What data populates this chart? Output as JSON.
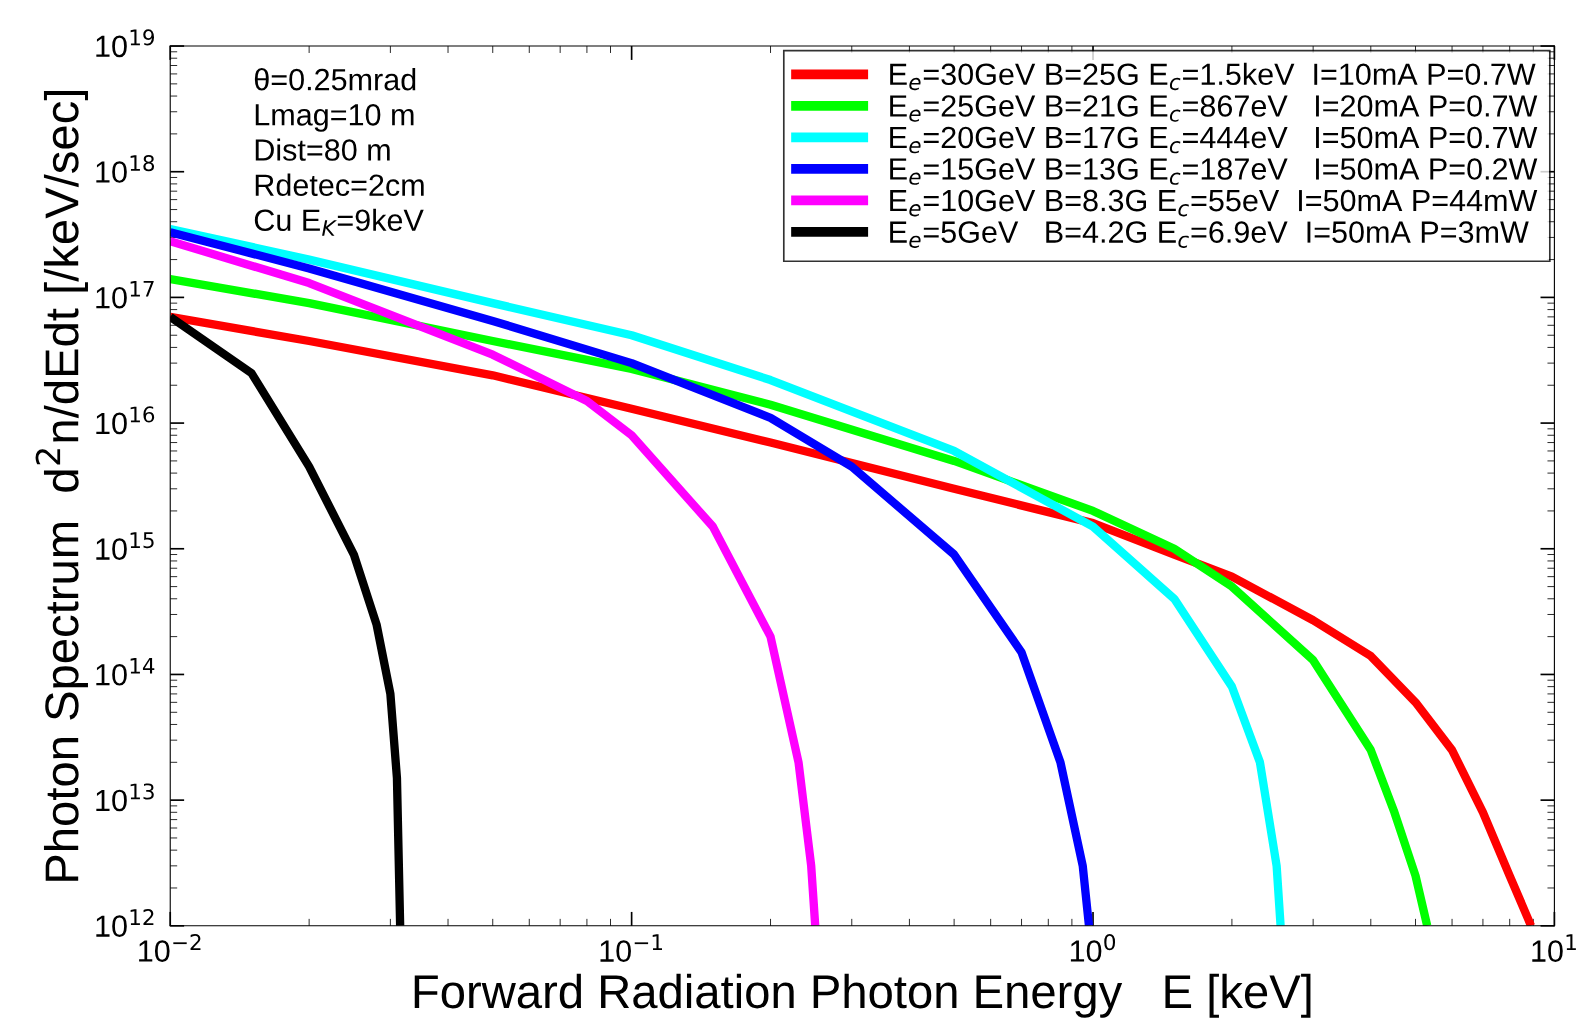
{
  "chart_data": {
    "type": "line",
    "xlabel": "Forward Radiation Photon Energy   E [keV]",
    "ylabel": "Photon Spectrum  d$^{2}$n/dEdt [/keV/sec]",
    "log": "xy",
    "grid": false,
    "legend": "top right",
    "marker": "none",
    "line_style": "solid",
    "xlim": [
      0.01,
      10
    ],
    "ylim": [
      1000000000000.0,
      1e+19
    ],
    "xticks": [
      {
        "value": 0.01,
        "label": "10$^{−2}$"
      },
      {
        "value": 0.1,
        "label": "10$^{−1}$"
      },
      {
        "value": 1,
        "label": "10$^{0}$"
      },
      {
        "value": 10,
        "label": "10$^{1}$"
      }
    ],
    "yticks": [
      {
        "value": 1000000000000.0,
        "label": "10$^{12}$"
      },
      {
        "value": 10000000000000.0,
        "label": "10$^{13}$"
      },
      {
        "value": 100000000000000.0,
        "label": "10$^{14}$"
      },
      {
        "value": 1000000000000000.0,
        "label": "10$^{15}$"
      },
      {
        "value": 1e+16,
        "label": "10$^{16}$"
      },
      {
        "value": 1e+17,
        "label": "10$^{17}$"
      },
      {
        "value": 1e+18,
        "label": "10$^{18}$"
      },
      {
        "value": 1e+19,
        "label": "10$^{19}$"
      }
    ],
    "annotations": [
      "θ=0.25mrad",
      "Lmag=10 m",
      "Dist=80 m",
      "Rdetec=2cm",
      "Cu E$_{K}$=9keV"
    ],
    "series": [
      {
        "name": "E$_{e}$=30GeV B=25G E$_{c}$=1.5keV  I=10mA P=0.7W",
        "color": "#ff0000",
        "x": [
          0.01,
          0.02,
          0.05,
          0.1,
          0.2,
          0.5,
          1,
          1.5,
          2,
          3,
          4,
          5,
          6,
          7,
          8,
          8.9
        ],
        "values": [
          7e+16,
          4.5e+16,
          2.4e+16,
          1.3e+16,
          7000000000000000.0,
          3000000000000000.0,
          1600000000000000.0,
          900000000000000.0,
          600000000000000.0,
          270000000000000.0,
          140000000000000.0,
          60000000000000.0,
          25000000000000.0,
          8000000000000.0,
          2500000000000.0,
          1000000000000.0
        ]
      },
      {
        "name": "E$_{e}$=25GeV B=21G E$_{c}$=867eV   I=20mA P=0.7W",
        "color": "#00ff00",
        "x": [
          0.01,
          0.02,
          0.05,
          0.1,
          0.2,
          0.5,
          1,
          1.5,
          2,
          3,
          4,
          4.5,
          5,
          5.3
        ],
        "values": [
          1.4e+17,
          9e+16,
          4.5e+16,
          2.7e+16,
          1.4e+16,
          5000000000000000.0,
          2000000000000000.0,
          1000000000000000.0,
          500000000000000.0,
          130000000000000.0,
          25000000000000.0,
          8000000000000.0,
          2500000000000.0,
          1000000000000.0
        ]
      },
      {
        "name": "E$_{e}$=20GeV B=17G E$_{c}$=444eV   I=50mA P=0.7W",
        "color": "#00ffff",
        "x": [
          0.01,
          0.02,
          0.05,
          0.1,
          0.2,
          0.5,
          1,
          1.5,
          2,
          2.3,
          2.5,
          2.55
        ],
        "values": [
          3.5e+17,
          2e+17,
          9e+16,
          5e+16,
          2.2e+16,
          6000000000000000.0,
          1500000000000000.0,
          400000000000000.0,
          80000000000000.0,
          20000000000000.0,
          3000000000000.0,
          1000000000000.0
        ]
      },
      {
        "name": "E$_{e}$=15GeV B=13G E$_{c}$=187eV   I=50mA P=0.2W",
        "color": "#0000ff",
        "x": [
          0.01,
          0.02,
          0.05,
          0.1,
          0.2,
          0.3,
          0.5,
          0.7,
          0.85,
          0.95,
          0.98
        ],
        "values": [
          3.3e+17,
          1.7e+17,
          6.5e+16,
          3e+16,
          1.1e+16,
          4500000000000000.0,
          900000000000000.0,
          150000000000000.0,
          20000000000000.0,
          3000000000000.0,
          1000000000000.0
        ]
      },
      {
        "name": "E$_{e}$=10GeV B=8.3G E$_{c}$=55eV  I=50mA P=44mW",
        "color": "#ff00ff",
        "x": [
          0.01,
          0.02,
          0.05,
          0.08,
          0.1,
          0.15,
          0.2,
          0.23,
          0.245,
          0.25
        ],
        "values": [
          2.8e+17,
          1.3e+17,
          3.5e+16,
          1.5e+16,
          8000000000000000.0,
          1500000000000000.0,
          200000000000000.0,
          20000000000000.0,
          3000000000000.0,
          1000000000000.0
        ]
      },
      {
        "name": "E$_{e}$=5GeV   B=4.2G E$_{c}$=6.9eV  I=50mA P=3mW",
        "color": "#000000",
        "x": [
          0.01,
          0.015,
          0.02,
          0.025,
          0.028,
          0.03,
          0.031,
          0.0315
        ],
        "values": [
          7e+16,
          2.5e+16,
          4500000000000000.0,
          900000000000000.0,
          250000000000000.0,
          70000000000000.0,
          15000000000000.0,
          1000000000000.0
        ]
      }
    ]
  }
}
